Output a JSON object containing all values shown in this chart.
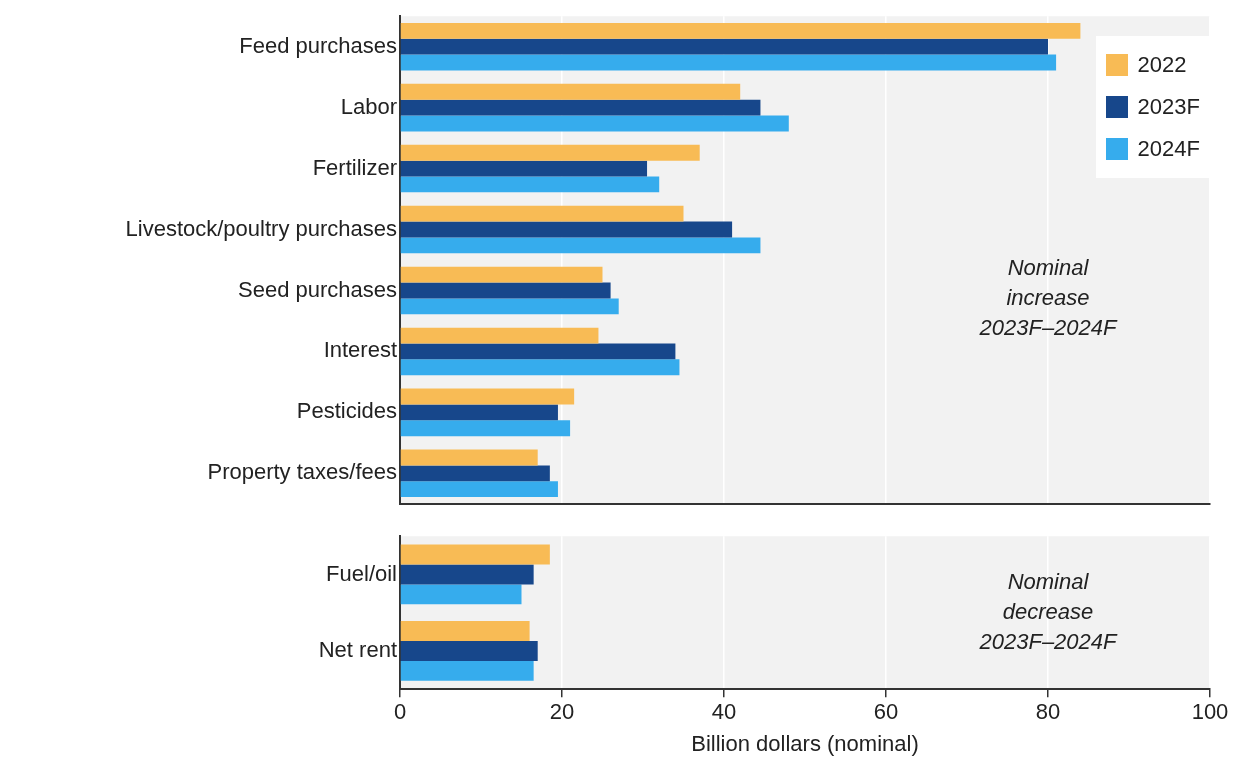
{
  "chart_data": [
    {
      "type": "bar",
      "orientation": "horizontal",
      "categories": [
        "Feed purchases",
        "Labor",
        "Fertilizer",
        "Livestock/poultry purchases",
        "Seed purchases",
        "Interest",
        "Pesticides",
        "Property taxes/fees"
      ],
      "series": [
        {
          "name": "2022",
          "color": "#f8bb55",
          "values": [
            84,
            42,
            37,
            35,
            25,
            24.5,
            21.5,
            17
          ]
        },
        {
          "name": "2023F",
          "color": "#17478b",
          "values": [
            80,
            44.5,
            30.5,
            41,
            26,
            34,
            19.5,
            18.5
          ]
        },
        {
          "name": "2024F",
          "color": "#36aced",
          "values": [
            81,
            48,
            32,
            44.5,
            27,
            34.5,
            21,
            19.5
          ]
        }
      ],
      "xlim": [
        0,
        100
      ],
      "xticks": [
        0,
        20,
        40,
        60,
        80,
        100
      ],
      "grid": "x",
      "legend": "top right",
      "tick_labels": "y",
      "annotations": [
        "Nominal increase 2023F–2024F"
      ]
    },
    {
      "type": "bar",
      "orientation": "horizontal",
      "categories": [
        "Fuel/oil",
        "Net rent"
      ],
      "series": [
        {
          "color": "#f8bb55",
          "values": [
            18.5,
            16
          ]
        },
        {
          "color": "#17478b",
          "values": [
            16.5,
            17
          ]
        },
        {
          "color": "#36aced",
          "values": [
            15,
            16.5
          ]
        }
      ],
      "xlim": [
        0,
        100
      ],
      "xticks": [
        0,
        20,
        40,
        60,
        80,
        100
      ],
      "grid": "x",
      "xlabel": "Billion dollars (nominal)",
      "annotations": [
        "Nominal decrease 2023F–2024F"
      ]
    }
  ]
}
